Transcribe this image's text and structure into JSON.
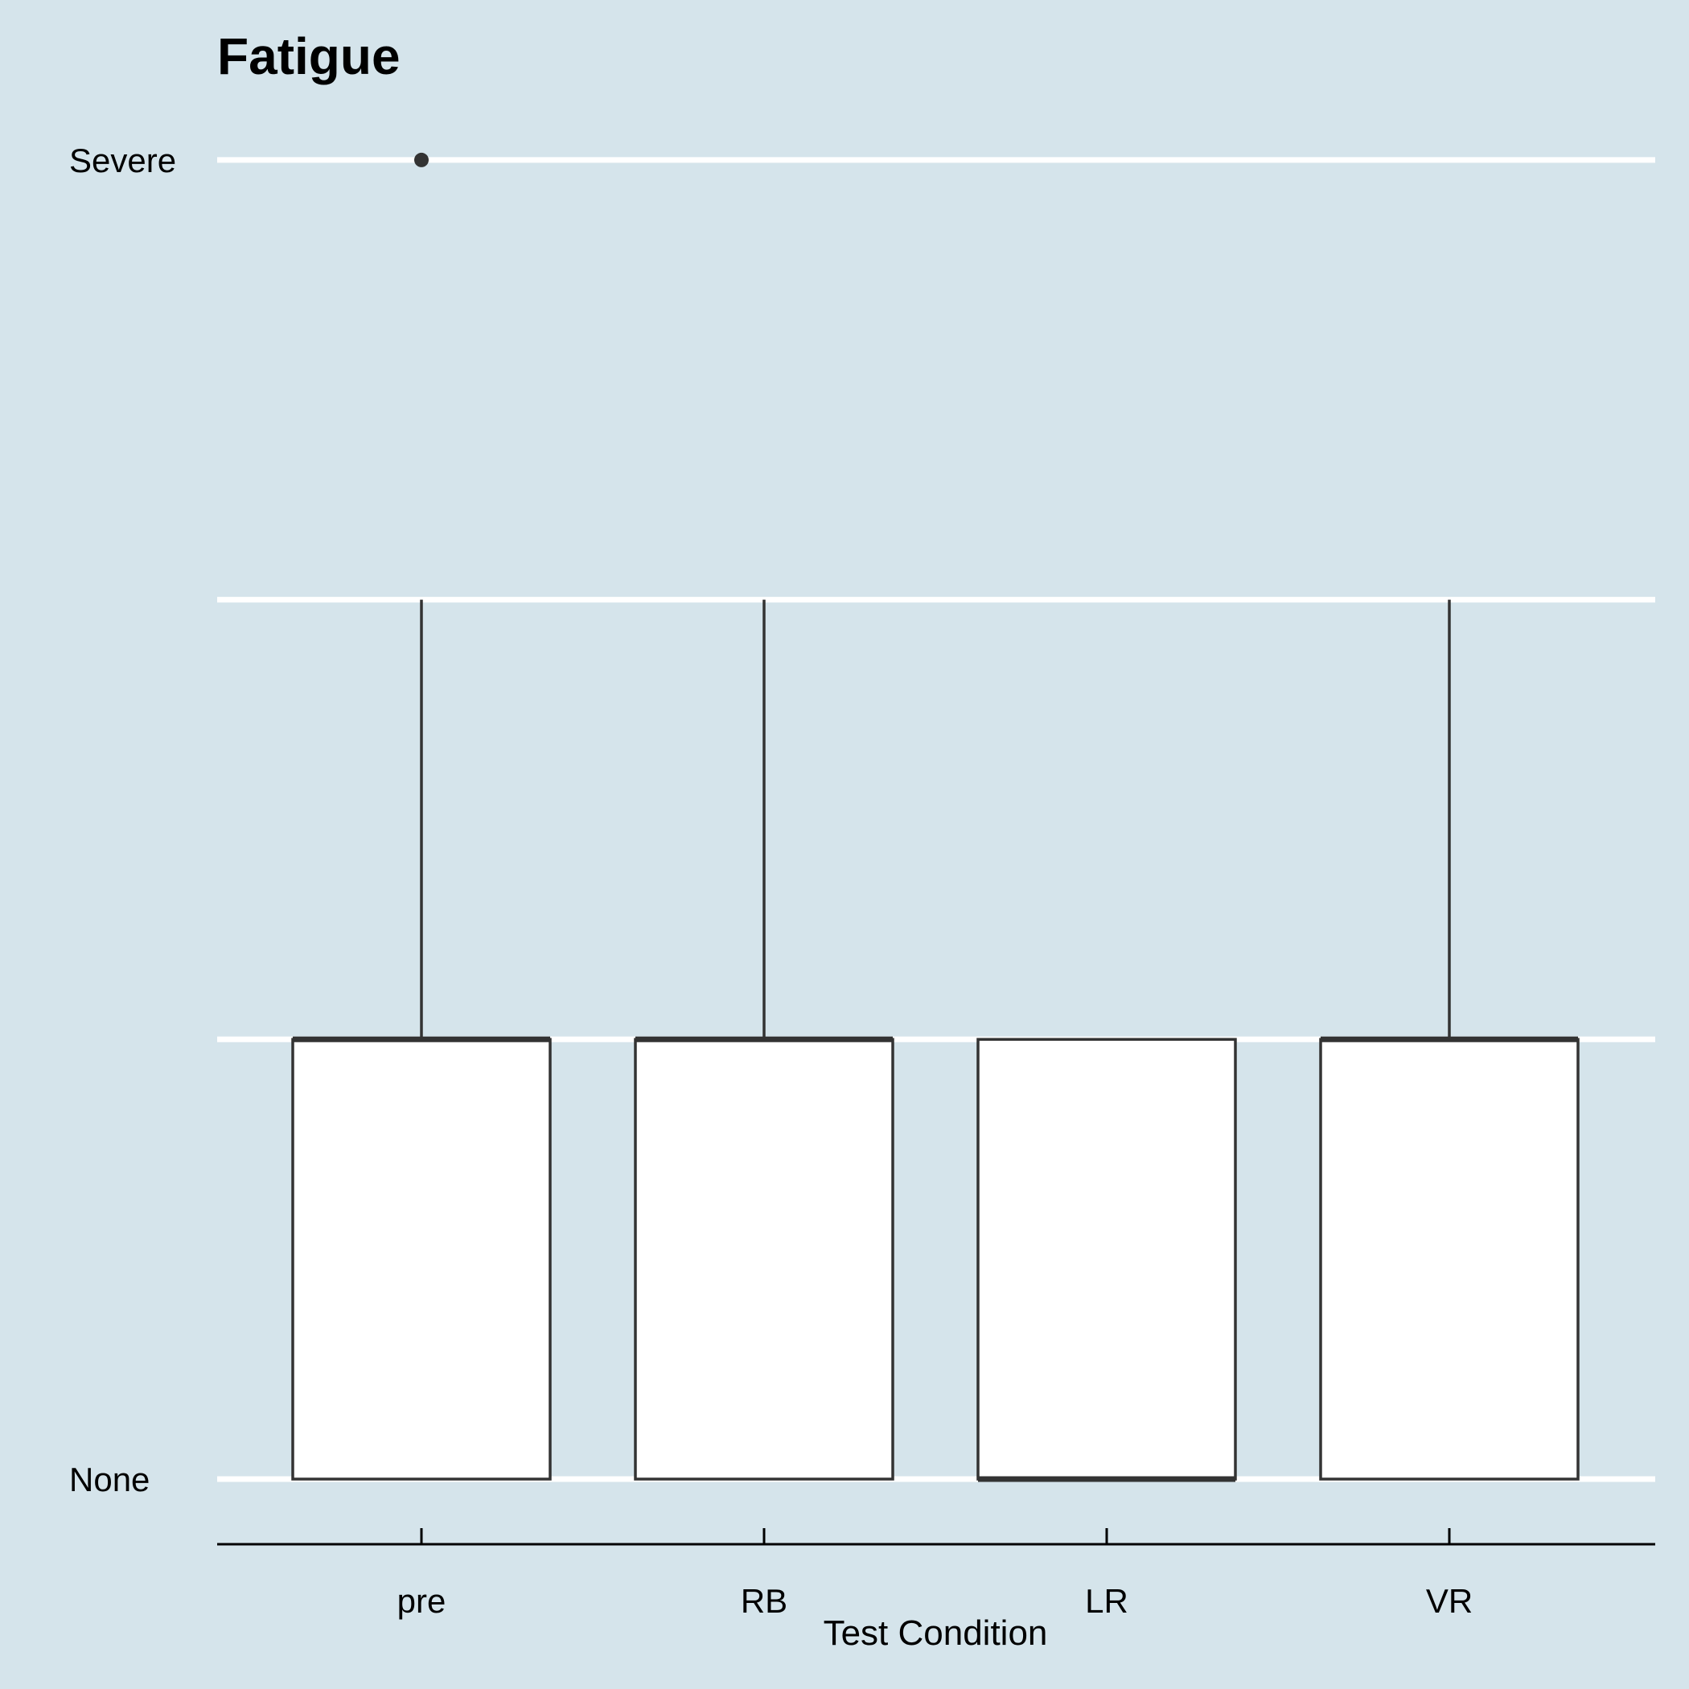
{
  "chart_data": {
    "type": "boxplot",
    "title": "Fatigue",
    "xlabel": "Test Condition",
    "ylabel": "",
    "categories": [
      "pre",
      "RB",
      "LR",
      "VR"
    ],
    "y_levels": [
      0,
      1,
      2,
      3
    ],
    "y_tick_labels": [
      {
        "value": 0,
        "label": "None"
      },
      {
        "value": 1,
        "label": ""
      },
      {
        "value": 2,
        "label": ""
      },
      {
        "value": 3,
        "label": "Severe"
      }
    ],
    "ylim": [
      -0.15,
      3.15
    ],
    "grid": true,
    "boxes": [
      {
        "category": "pre",
        "min": 0,
        "q1": 0,
        "median": 1,
        "q3": 1,
        "max": 2,
        "outliers": [
          3
        ]
      },
      {
        "category": "RB",
        "min": 0,
        "q1": 0,
        "median": 1,
        "q3": 1,
        "max": 2,
        "outliers": []
      },
      {
        "category": "LR",
        "min": 0,
        "q1": 0,
        "median": 0,
        "q3": 1,
        "max": 1,
        "outliers": []
      },
      {
        "category": "VR",
        "min": 0,
        "q1": 0,
        "median": 1,
        "q3": 1,
        "max": 2,
        "outliers": []
      }
    ],
    "colors": {
      "background": "#d5e4eb",
      "gridline": "#ffffff",
      "box_fill": "#ffffff",
      "box_stroke": "#333333",
      "axis": "#000000"
    }
  }
}
